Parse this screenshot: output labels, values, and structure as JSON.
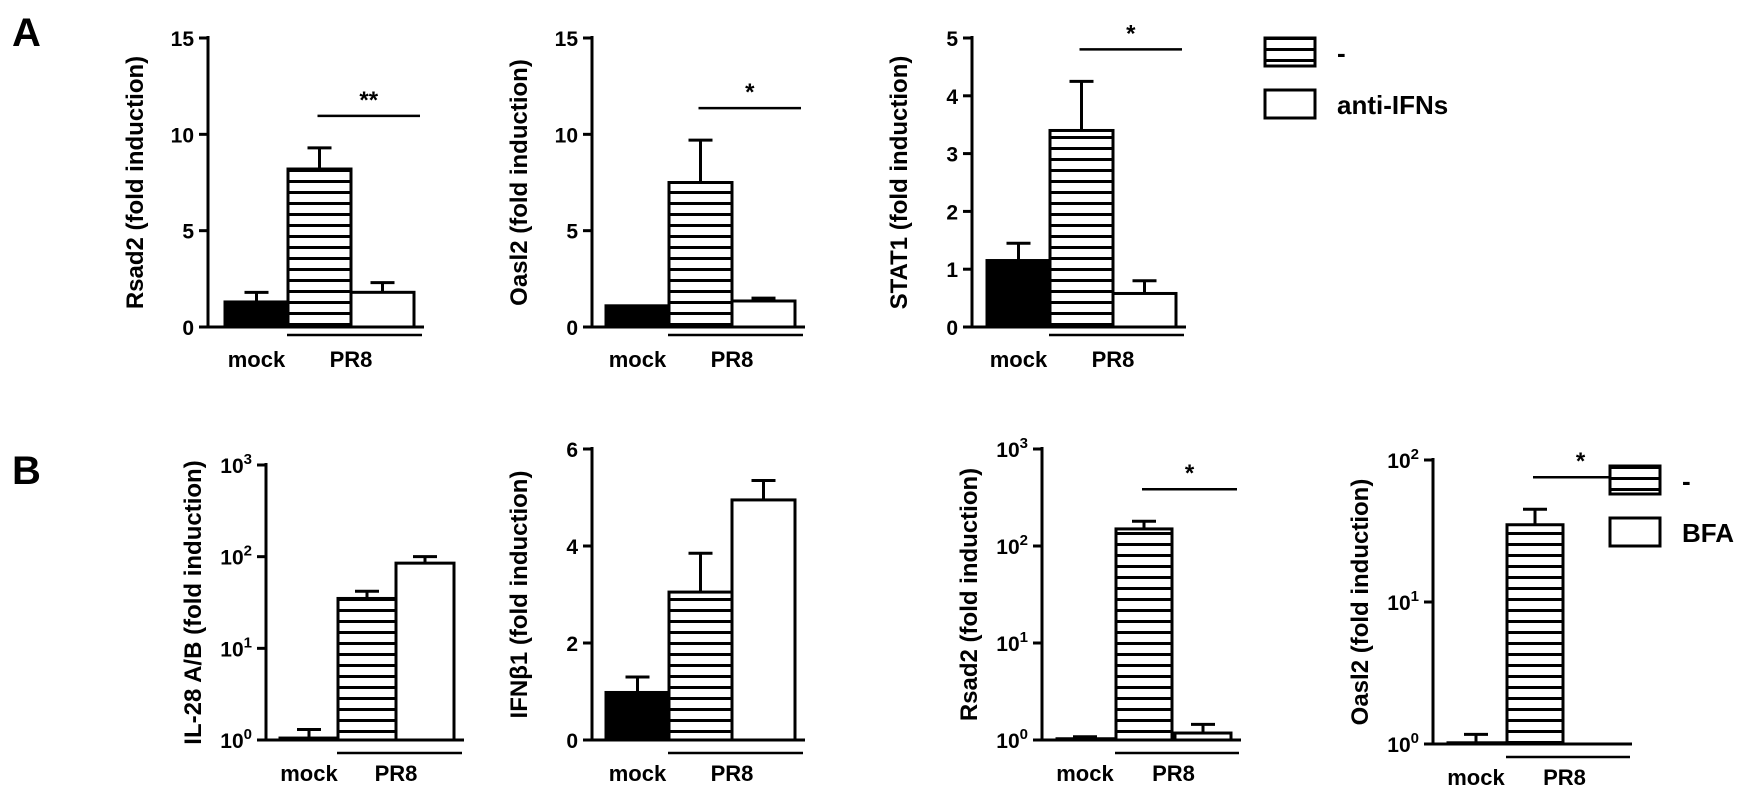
{
  "panels": [
    {
      "id": "panel-a",
      "letter": "A"
    },
    {
      "id": "panel-b",
      "letter": "B"
    }
  ],
  "legends": [
    {
      "id": "legend-a",
      "entries": [
        {
          "label": "-",
          "pattern": "hstripes"
        },
        {
          "label": "anti-IFNs",
          "pattern": "open"
        }
      ]
    },
    {
      "id": "legend-b",
      "entries": [
        {
          "label": "-",
          "pattern": "hstripes"
        },
        {
          "label": "BFA",
          "pattern": "open"
        }
      ]
    }
  ],
  "chart_data": [
    {
      "type": "bar",
      "panel": "A",
      "ylabel": "Rsad2 (fold induction)",
      "yscale": "linear",
      "ylim": [
        0,
        15
      ],
      "yticks": [
        0,
        5,
        10,
        15
      ],
      "yticklabels": [
        "0",
        "5",
        "10",
        "15"
      ],
      "categories": [
        "mock",
        "PR8"
      ],
      "bars": [
        {
          "group": "mock",
          "pattern": "solid",
          "value": 1.3,
          "error": 0.5
        },
        {
          "group": "PR8",
          "pattern": "hstripes",
          "series": "-",
          "value": 8.2,
          "error": 1.1
        },
        {
          "group": "PR8",
          "pattern": "open",
          "series": "anti-IFNs",
          "value": 1.8,
          "error": 0.5
        }
      ],
      "significance": {
        "label": "**",
        "from_bar": 1,
        "to_bar": 2
      }
    },
    {
      "type": "bar",
      "panel": "A",
      "ylabel": "Oasl2 (fold induction)",
      "yscale": "linear",
      "ylim": [
        0,
        15
      ],
      "yticks": [
        0,
        5,
        10,
        15
      ],
      "yticklabels": [
        "0",
        "5",
        "10",
        "15"
      ],
      "categories": [
        "mock",
        "PR8"
      ],
      "bars": [
        {
          "group": "mock",
          "pattern": "solid",
          "value": 1.1,
          "error": 0.0
        },
        {
          "group": "PR8",
          "pattern": "hstripes",
          "series": "-",
          "value": 7.5,
          "error": 2.2
        },
        {
          "group": "PR8",
          "pattern": "open",
          "series": "anti-IFNs",
          "value": 1.35,
          "error": 0.15
        }
      ],
      "significance": {
        "label": "*",
        "from_bar": 1,
        "to_bar": 2
      }
    },
    {
      "type": "bar",
      "panel": "A",
      "ylabel": "STAT1 (fold induction)",
      "yscale": "linear",
      "ylim": [
        0,
        5
      ],
      "yticks": [
        0,
        1,
        2,
        3,
        4,
        5
      ],
      "yticklabels": [
        "0",
        "1",
        "2",
        "3",
        "4",
        "5"
      ],
      "categories": [
        "mock",
        "PR8"
      ],
      "bars": [
        {
          "group": "mock",
          "pattern": "solid",
          "value": 1.15,
          "error": 0.3
        },
        {
          "group": "PR8",
          "pattern": "hstripes",
          "series": "-",
          "value": 3.4,
          "error": 0.85
        },
        {
          "group": "PR8",
          "pattern": "open",
          "series": "anti-IFNs",
          "value": 0.58,
          "error": 0.22
        }
      ],
      "significance": {
        "label": "*",
        "from_bar": 1,
        "to_bar": 2
      }
    },
    {
      "type": "bar",
      "panel": "B",
      "ylabel": "IL-28 A/B (fold induction)",
      "yscale": "log",
      "ylim": [
        1,
        1000
      ],
      "yticks": [
        1,
        10,
        100,
        1000
      ],
      "yticklabels": [
        {
          "base": "10",
          "exp": "0"
        },
        {
          "base": "10",
          "exp": "1"
        },
        {
          "base": "10",
          "exp": "2"
        },
        {
          "base": "10",
          "exp": "3"
        }
      ],
      "categories": [
        "mock",
        "PR8"
      ],
      "bars": [
        {
          "group": "mock",
          "pattern": "solid",
          "value": 1.05,
          "error": 0.25
        },
        {
          "group": "PR8",
          "pattern": "hstripes",
          "series": "-",
          "value": 35,
          "error": 7
        },
        {
          "group": "PR8",
          "pattern": "open",
          "series": "BFA",
          "value": 85,
          "error": 15
        }
      ]
    },
    {
      "type": "bar",
      "panel": "B",
      "ylabel": "IFNβ1 (fold induction)",
      "yscale": "linear",
      "ylim": [
        0,
        6
      ],
      "yticks": [
        0,
        2,
        4,
        6
      ],
      "yticklabels": [
        "0",
        "2",
        "4",
        "6"
      ],
      "categories": [
        "mock",
        "PR8"
      ],
      "bars": [
        {
          "group": "mock",
          "pattern": "solid",
          "value": 0.98,
          "error": 0.32
        },
        {
          "group": "PR8",
          "pattern": "hstripes",
          "series": "-",
          "value": 3.05,
          "error": 0.8
        },
        {
          "group": "PR8",
          "pattern": "open",
          "series": "BFA",
          "value": 4.95,
          "error": 0.4
        }
      ]
    },
    {
      "type": "bar",
      "panel": "B",
      "ylabel": "Rsad2 (fold induction)",
      "yscale": "log",
      "ylim": [
        1,
        1000
      ],
      "yticks": [
        1,
        10,
        100,
        1000
      ],
      "yticklabels": [
        {
          "base": "10",
          "exp": "0"
        },
        {
          "base": "10",
          "exp": "1"
        },
        {
          "base": "10",
          "exp": "2"
        },
        {
          "base": "10",
          "exp": "3"
        }
      ],
      "categories": [
        "mock",
        "PR8"
      ],
      "bars": [
        {
          "group": "mock",
          "pattern": "solid",
          "value": 1.03,
          "error": 0.05
        },
        {
          "group": "PR8",
          "pattern": "hstripes",
          "series": "-",
          "value": 150,
          "error": 30
        },
        {
          "group": "PR8",
          "pattern": "open",
          "series": "BFA",
          "value": 1.18,
          "error": 0.27
        }
      ],
      "significance": {
        "label": "*",
        "from_bar": 1,
        "to_bar": 2
      }
    },
    {
      "type": "bar",
      "panel": "B",
      "ylabel": "Oasl2 (fold induction)",
      "yscale": "log",
      "ylim": [
        1,
        100
      ],
      "yticks": [
        1,
        10,
        100
      ],
      "yticklabels": [
        {
          "base": "10",
          "exp": "0"
        },
        {
          "base": "10",
          "exp": "1"
        },
        {
          "base": "10",
          "exp": "2"
        }
      ],
      "categories": [
        "mock",
        "PR8"
      ],
      "bars": [
        {
          "group": "mock",
          "pattern": "solid",
          "value": 1.02,
          "error": 0.15
        },
        {
          "group": "PR8",
          "pattern": "hstripes",
          "series": "-",
          "value": 35,
          "error": 10
        },
        {
          "group": "PR8",
          "pattern": "open",
          "series": "BFA",
          "value": 1.0,
          "error": 0.0
        }
      ],
      "significance": {
        "label": "*",
        "from_bar": 1,
        "to_bar": 2
      }
    }
  ]
}
